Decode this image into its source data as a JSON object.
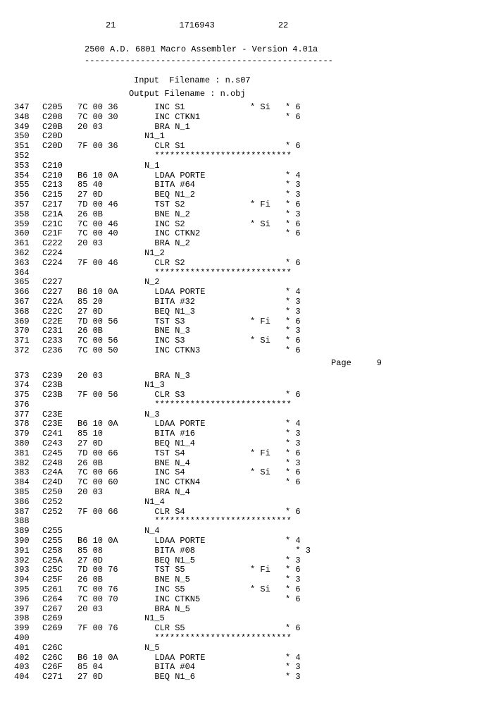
{
  "header": {
    "left_num": "21",
    "doc_num": "1716943",
    "right_num": "22",
    "title": "2500 A.D. 6801 Macro Assembler  -  Version 4.01a",
    "underline": "-------------------------------------------------",
    "input_label": "Input  Filename : n.s07",
    "output_label": "Output Filename : n.obj"
  },
  "page_marker": "Page     9",
  "rows": [
    {
      "ln": "347",
      "addr": "C205",
      "hex": "7C 00 36",
      "asm": "  INC S1",
      "flag": "* Si",
      "cyc": "* 6"
    },
    {
      "ln": "348",
      "addr": "C208",
      "hex": "7C 00 30",
      "asm": "  INC CTKN1",
      "flag": "",
      "cyc": "* 6"
    },
    {
      "ln": "349",
      "addr": "C20B",
      "hex": "20 03",
      "asm": "  BRA N_1",
      "flag": "",
      "cyc": ""
    },
    {
      "ln": "350",
      "addr": "C20D",
      "hex": "",
      "asm": "N1_1",
      "flag": "",
      "cyc": ""
    },
    {
      "ln": "351",
      "addr": "C20D",
      "hex": "7F 00 36",
      "asm": "  CLR S1",
      "flag": "",
      "cyc": "* 6"
    },
    {
      "ln": "352",
      "addr": "",
      "hex": "",
      "asm": "  ***************************",
      "flag": "",
      "cyc": "",
      "sep": true
    },
    {
      "ln": "353",
      "addr": "C210",
      "hex": "",
      "asm": "N_1",
      "flag": "",
      "cyc": ""
    },
    {
      "ln": "354",
      "addr": "C210",
      "hex": "B6 10 0A",
      "asm": "  LDAA PORTE",
      "flag": "",
      "cyc": "* 4"
    },
    {
      "ln": "355",
      "addr": "C213",
      "hex": "85 40",
      "asm": "  BITA #64",
      "flag": "",
      "cyc": "* 3"
    },
    {
      "ln": "356",
      "addr": "C215",
      "hex": "27 0D",
      "asm": "  BEQ N1_2",
      "flag": "",
      "cyc": "* 3"
    },
    {
      "ln": "357",
      "addr": "C217",
      "hex": "7D 00 46",
      "asm": "  TST S2",
      "flag": "* Fi",
      "cyc": "* 6"
    },
    {
      "ln": "358",
      "addr": "C21A",
      "hex": "26 0B",
      "asm": "  BNE N_2",
      "flag": "",
      "cyc": "* 3"
    },
    {
      "ln": "359",
      "addr": "C21C",
      "hex": "7C 00 46",
      "asm": "  INC S2",
      "flag": "* Si",
      "cyc": "* 6"
    },
    {
      "ln": "360",
      "addr": "C21F",
      "hex": "7C 00 40",
      "asm": "  INC CTKN2",
      "flag": "",
      "cyc": "* 6"
    },
    {
      "ln": "361",
      "addr": "C222",
      "hex": "20 03",
      "asm": "  BRA N_2",
      "flag": "",
      "cyc": ""
    },
    {
      "ln": "362",
      "addr": "C224",
      "hex": "",
      "asm": "N1_2",
      "flag": "",
      "cyc": ""
    },
    {
      "ln": "363",
      "addr": "C224",
      "hex": "7F 00 46",
      "asm": "  CLR S2",
      "flag": "",
      "cyc": "* 6"
    },
    {
      "ln": "364",
      "addr": "",
      "hex": "",
      "asm": "  ***************************",
      "flag": "",
      "cyc": "",
      "sep": true
    },
    {
      "ln": "365",
      "addr": "C227",
      "hex": "",
      "asm": "N_2",
      "flag": "",
      "cyc": ""
    },
    {
      "ln": "366",
      "addr": "C227",
      "hex": "B6 10 0A",
      "asm": "  LDAA PORTE",
      "flag": "",
      "cyc": "* 4"
    },
    {
      "ln": "367",
      "addr": "C22A",
      "hex": "85 20",
      "asm": "  BITA #32",
      "flag": "",
      "cyc": "* 3"
    },
    {
      "ln": "368",
      "addr": "C22C",
      "hex": "27 0D",
      "asm": "  BEQ N1_3",
      "flag": "",
      "cyc": "* 3"
    },
    {
      "ln": "369",
      "addr": "C22E",
      "hex": "7D 00 56",
      "asm": "  TST S3",
      "flag": "* Fi",
      "cyc": "* 6"
    },
    {
      "ln": "370",
      "addr": "C231",
      "hex": "26 0B",
      "asm": "  BNE N_3",
      "flag": "",
      "cyc": "* 3"
    },
    {
      "ln": "371",
      "addr": "C233",
      "hex": "7C 00 56",
      "asm": "  INC S3",
      "flag": "* Si",
      "cyc": "* 6"
    },
    {
      "ln": "372",
      "addr": "C236",
      "hex": "7C 00 50",
      "asm": "  INC CTKN3",
      "flag": "",
      "cyc": "* 6"
    },
    {
      "ln": "PAGE",
      "addr": "",
      "hex": "",
      "asm": "",
      "flag": "",
      "cyc": "",
      "page": true
    },
    {
      "ln": "373",
      "addr": "C239",
      "hex": "20 03",
      "asm": "  BRA N_3",
      "flag": "",
      "cyc": ""
    },
    {
      "ln": "374",
      "addr": "C23B",
      "hex": "",
      "asm": "N1_3",
      "flag": "",
      "cyc": ""
    },
    {
      "ln": "375",
      "addr": "C23B",
      "hex": "7F 00 56",
      "asm": "  CLR S3",
      "flag": "",
      "cyc": "* 6"
    },
    {
      "ln": "376",
      "addr": "",
      "hex": "",
      "asm": "  ***************************",
      "flag": "",
      "cyc": "",
      "sep": true
    },
    {
      "ln": "377",
      "addr": "C23E",
      "hex": "",
      "asm": "N_3",
      "flag": "",
      "cyc": ""
    },
    {
      "ln": "378",
      "addr": "C23E",
      "hex": "B6 10 0A",
      "asm": "  LDAA PORTE",
      "flag": "",
      "cyc": "* 4"
    },
    {
      "ln": "379",
      "addr": "C241",
      "hex": "85 10",
      "asm": "  BITA #16",
      "flag": "",
      "cyc": "* 3"
    },
    {
      "ln": "380",
      "addr": "C243",
      "hex": "27 0D",
      "asm": "  BEQ N1_4",
      "flag": "",
      "cyc": "* 3"
    },
    {
      "ln": "381",
      "addr": "C245",
      "hex": "7D 00 66",
      "asm": "  TST S4",
      "flag": "* Fi",
      "cyc": "* 6"
    },
    {
      "ln": "382",
      "addr": "C248",
      "hex": "26 0B",
      "asm": "  BNE N_4",
      "flag": "",
      "cyc": "* 3"
    },
    {
      "ln": "383",
      "addr": "C24A",
      "hex": "7C 00 66",
      "asm": "  INC S4",
      "flag": "* Si",
      "cyc": "* 6"
    },
    {
      "ln": "384",
      "addr": "C24D",
      "hex": "7C 00 60",
      "asm": "  INC CTKN4",
      "flag": "",
      "cyc": "* 6"
    },
    {
      "ln": "385",
      "addr": "C250",
      "hex": "20 03",
      "asm": "  BRA N_4",
      "flag": "",
      "cyc": ""
    },
    {
      "ln": "386",
      "addr": "C252",
      "hex": "",
      "asm": "N1_4",
      "flag": "",
      "cyc": ""
    },
    {
      "ln": "387",
      "addr": "C252",
      "hex": "7F 00 66",
      "asm": "  CLR S4",
      "flag": "",
      "cyc": "* 6"
    },
    {
      "ln": "388",
      "addr": "",
      "hex": "",
      "asm": "  ***************************",
      "flag": "",
      "cyc": "",
      "sep": true
    },
    {
      "ln": "389",
      "addr": "C255",
      "hex": "",
      "asm": "N_4",
      "flag": "",
      "cyc": ""
    },
    {
      "ln": "390",
      "addr": "C255",
      "hex": "B6 10 0A",
      "asm": "  LDAA PORTE",
      "flag": "",
      "cyc": "* 4"
    },
    {
      "ln": "391",
      "addr": "C258",
      "hex": "85 08",
      "asm": "  BITA #08",
      "flag": "",
      "cyc": "  * 3"
    },
    {
      "ln": "392",
      "addr": "C25A",
      "hex": "27 0D",
      "asm": "  BEQ N1_5",
      "flag": "",
      "cyc": "* 3"
    },
    {
      "ln": "393",
      "addr": "C25C",
      "hex": "7D 00 76",
      "asm": "  TST S5",
      "flag": "* Fi",
      "cyc": "* 6"
    },
    {
      "ln": "394",
      "addr": "C25F",
      "hex": "26 0B",
      "asm": "  BNE N_5",
      "flag": "",
      "cyc": "* 3"
    },
    {
      "ln": "395",
      "addr": "C261",
      "hex": "7C 00 76",
      "asm": "  INC S5",
      "flag": "* Si",
      "cyc": "* 6"
    },
    {
      "ln": "396",
      "addr": "C264",
      "hex": "7C 00 70",
      "asm": "  INC CTKN5",
      "flag": "",
      "cyc": "* 6"
    },
    {
      "ln": "397",
      "addr": "C267",
      "hex": "20 03",
      "asm": "  BRA N_5",
      "flag": "",
      "cyc": ""
    },
    {
      "ln": "398",
      "addr": "C269",
      "hex": "",
      "asm": "N1_5",
      "flag": "",
      "cyc": ""
    },
    {
      "ln": "399",
      "addr": "C269",
      "hex": "7F 00 76",
      "asm": "  CLR S5",
      "flag": "",
      "cyc": "* 6"
    },
    {
      "ln": "400",
      "addr": "",
      "hex": "",
      "asm": "  ***************************",
      "flag": "",
      "cyc": "",
      "sep": true
    },
    {
      "ln": "401",
      "addr": "C26C",
      "hex": "",
      "asm": "N_5",
      "flag": "",
      "cyc": ""
    },
    {
      "ln": "402",
      "addr": "C26C",
      "hex": "B6 10 0A",
      "asm": "  LDAA PORTE",
      "flag": "",
      "cyc": "* 4"
    },
    {
      "ln": "403",
      "addr": "C26F",
      "hex": "85 04",
      "asm": "  BITA #04",
      "flag": "",
      "cyc": "* 3"
    },
    {
      "ln": "404",
      "addr": "C271",
      "hex": "27 0D",
      "asm": "  BEQ N1_6",
      "flag": "",
      "cyc": "* 3"
    }
  ]
}
